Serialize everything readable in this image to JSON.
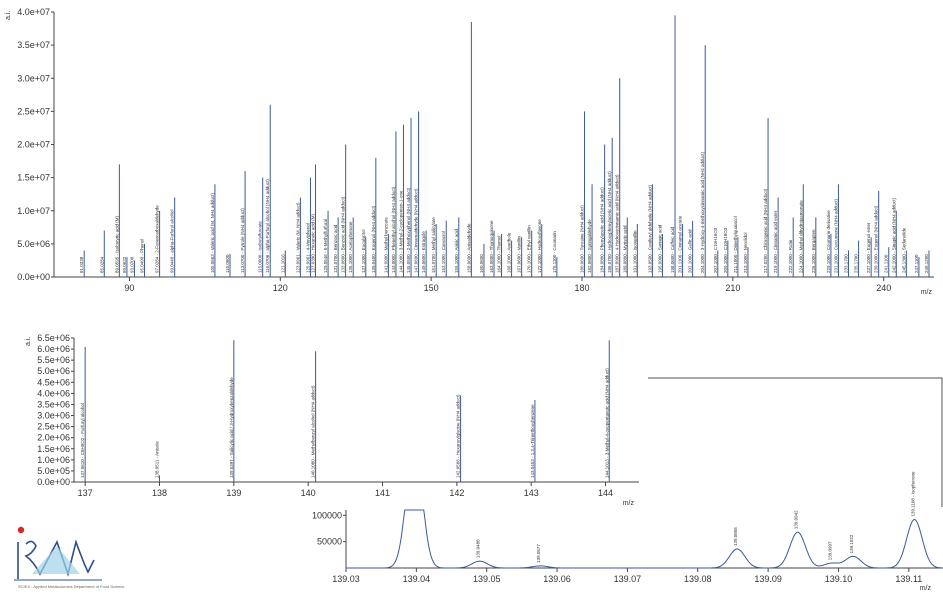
{
  "chart_data": [
    {
      "type": "bar",
      "ylabel": "a.i.",
      "xlabel": "m/z",
      "xlim": [
        75,
        250
      ],
      "ylim": [
        0,
        40000000
      ],
      "yticks": [
        "0.0e+00",
        "5.0e+06",
        "1.0e+07",
        "1.5e+07",
        "2.0e+07",
        "2.5e+07",
        "3.0e+07",
        "3.5e+07",
        "4.0e+07"
      ],
      "xticks": [
        "90",
        "120",
        "150",
        "180",
        "210",
        "240"
      ],
      "peaks": [
        {
          "x": 81.0,
          "y": 4000000,
          "label": "81.0338"
        },
        {
          "x": 85.0,
          "y": 7000000,
          "label": "85.0284"
        },
        {
          "x": 88.0,
          "y": 17000000,
          "label": "89.0595 - Isobutyric acid (M)"
        },
        {
          "x": 89.5,
          "y": 3000000,
          "label": "89.0632"
        },
        {
          "x": 91.0,
          "y": 2500000,
          "label": "93.0700"
        },
        {
          "x": 93.0,
          "y": 5000000,
          "label": "95.0490 - Phenol"
        },
        {
          "x": 96.0,
          "y": 10000000,
          "label": "97.0284 - 2-Furancarboxaldehyde"
        },
        {
          "x": 99.0,
          "y": 12000000,
          "label": "99.0440 - alpha-Furfuryl alcohol"
        },
        {
          "x": 107.0,
          "y": 14000000,
          "label": "105.0663 - Valeric acid (M, NH4 adduct)"
        },
        {
          "x": 110.0,
          "y": 3500000,
          "label": "110.0600"
        },
        {
          "x": 113.0,
          "y": 16000000,
          "label": "113.0700 - Pyrrole (NH4 adduct)"
        },
        {
          "x": 116.5,
          "y": 15000000,
          "label": "115.0600 - Isobutylfuroate"
        },
        {
          "x": 118.0,
          "y": 26000000,
          "label": "116.0706 - alpha-Furfuryl alcohol (NH4 adduct)"
        },
        {
          "x": 121.0,
          "y": 4000000,
          "label": "121.1016"
        },
        {
          "x": 124.0,
          "y": 12000000,
          "label": "123.0961 - Valeric (M, NH4 adduct)"
        },
        {
          "x": 126.0,
          "y": 15000000,
          "label": "125.0961 - 4-Vinylphenol"
        },
        {
          "x": 127.0,
          "y": 17000000,
          "label": "127.0390 - Hexanoic acid (M)"
        },
        {
          "x": 129.5,
          "y": 10000000,
          "label": "129.0546 - 5-Methylfurfural"
        },
        {
          "x": 131.5,
          "y": 9000000,
          "label": "131.0700 - Benzoic acid"
        },
        {
          "x": 133.0,
          "y": 20000000,
          "label": "133.0800 - Benzoic acid (NH4 adduct)"
        },
        {
          "x": 134.5,
          "y": 9000000,
          "label": "135.1000 - Acetophenone"
        },
        {
          "x": 137.0,
          "y": 6000000,
          "label": "137.1000 - Eucalyptol"
        },
        {
          "x": 139.0,
          "y": 18000000,
          "label": "139.0400 - Eugenol (NH4 adduct)"
        },
        {
          "x": 141.5,
          "y": 6500000,
          "label": "141.0900 - Methyl benzoate"
        },
        {
          "x": 143.0,
          "y": 22000000,
          "label": "143.0000 - Phenethyl alcohol (NH4 adduct)"
        },
        {
          "x": 144.5,
          "y": 23000000,
          "label": "144.1000 - 3-Methyl-2-cyclopenten-1-one"
        },
        {
          "x": 146.0,
          "y": 24000000,
          "label": "145.0500 - 2-Methoxyphenol (NH4 adduct)"
        },
        {
          "x": 147.5,
          "y": 25000000,
          "label": "147.0600 - Cinnamaldehyde (NH4 adduct)"
        },
        {
          "x": 149.0,
          "y": 7000000,
          "label": "149.0600 - Estragole"
        },
        {
          "x": 151.0,
          "y": 8000000,
          "label": "151.0700 - Methyl salicylate"
        },
        {
          "x": 153.0,
          "y": 8500000,
          "label": "153.1000 - Carvacrol"
        },
        {
          "x": 155.5,
          "y": 9000000,
          "label": "155.1000 - Anisic acid"
        },
        {
          "x": 158.0,
          "y": 38500000,
          "label": "158.0600 - Anisaldehyde"
        },
        {
          "x": 160.5,
          "y": 5000000,
          "label": "160.0600"
        },
        {
          "x": 162.5,
          "y": 7000000,
          "label": "163.0600 - Thymoquinone"
        },
        {
          "x": 164.0,
          "y": 6500000,
          "label": "164.1000 - Thymol"
        },
        {
          "x": 166.0,
          "y": 5500000,
          "label": "166.1000 - Anethole"
        },
        {
          "x": 168.0,
          "y": 6000000,
          "label": "167.0600 - Vanillin"
        },
        {
          "x": 170.0,
          "y": 7000000,
          "label": "170.1000 - Ethyl vanillin"
        },
        {
          "x": 172.0,
          "y": 8000000,
          "label": "172.1000 - Hydroxyflavone"
        },
        {
          "x": 175.0,
          "y": 3000000,
          "label": "175.1100 - Coumarin"
        },
        {
          "x": 180.5,
          "y": 25000000,
          "label": "180.0600 - Tyrosine (NH4 adduct)"
        },
        {
          "x": 182.0,
          "y": 14000000,
          "label": "182.0800 - Syringaldehyde"
        },
        {
          "x": 184.5,
          "y": 20000000,
          "label": "184.0800 - Phenylacetic acid (NH4 adduct)"
        },
        {
          "x": 186.0,
          "y": 21000000,
          "label": "186.0700 - Hydroxyphenylacetic acid (NH4 adduct)"
        },
        {
          "x": 187.5,
          "y": 30000000,
          "label": "187.0900 - 4-Hydroxycinnamic acid (NH4 adduct)"
        },
        {
          "x": 189.0,
          "y": 9000000,
          "label": "189.0800 - Myristic acid"
        },
        {
          "x": 191.0,
          "y": 8000000,
          "label": "191.1000 - Isovanillin"
        },
        {
          "x": 194.0,
          "y": 14000000,
          "label": "193.0500 - Coniferyl aldehyde (NH4 adduct)"
        },
        {
          "x": 196.0,
          "y": 6500000,
          "label": "195.0900 - Syringic acid"
        },
        {
          "x": 198.5,
          "y": 39500000,
          "label": "198.0600 - Caffeic acid"
        },
        {
          "x": 200.0,
          "y": 8000000,
          "label": "201.1100 - Cinnamyl acetate"
        },
        {
          "x": 202.0,
          "y": 8500000,
          "label": "202.1000 - Gallic acid"
        },
        {
          "x": 204.5,
          "y": 35000000,
          "label": "204.1000 - 3-Hydroxy-4-methoxycinnamic acid (NH4 adduct)"
        },
        {
          "x": 207.0,
          "y": 4000000,
          "label": "207.1000 - C10H16O3"
        },
        {
          "x": 209.0,
          "y": 5500000,
          "label": "209.1000 - C10H18O3"
        },
        {
          "x": 211.0,
          "y": 6000000,
          "label": "211.1000 - Dimethylguaiacol"
        },
        {
          "x": 213.0,
          "y": 4500000,
          "label": "213.1000 - Nerolidol"
        },
        {
          "x": 217.0,
          "y": 24000000,
          "label": "217.0200 - Chlorogenic acid (NH4 adduct)"
        },
        {
          "x": 219.0,
          "y": 12000000,
          "label": "219.1000 - Cinnamic acid ester"
        },
        {
          "x": 222.0,
          "y": 9000000,
          "label": "222.1000 - Rutin"
        },
        {
          "x": 224.0,
          "y": 14000000,
          "label": "224.1000 - Methyl dihydrojasmonate"
        },
        {
          "x": 226.5,
          "y": 9000000,
          "label": "226.1000 - Bergapten"
        },
        {
          "x": 229.5,
          "y": 6500000,
          "label": "229.1000 - Coumarin derivative"
        },
        {
          "x": 231.0,
          "y": 14000000,
          "label": "231.1000 - Curcumene (NH4 adduct)"
        },
        {
          "x": 233.0,
          "y": 4000000,
          "label": "233.1700"
        },
        {
          "x": 235.0,
          "y": 5500000,
          "label": "235.1700"
        },
        {
          "x": 237.5,
          "y": 6000000,
          "label": "237.1000 - Eugenol ester"
        },
        {
          "x": 239.0,
          "y": 13000000,
          "label": "239.1000 - Eugenol (NH4 adduct)"
        },
        {
          "x": 241.0,
          "y": 4500000,
          "label": "241.1100"
        },
        {
          "x": 242.5,
          "y": 10000000,
          "label": "242.1000 - Sinapic acid (NH4 adduct)"
        },
        {
          "x": 244.5,
          "y": 4000000,
          "label": "245.1300 - Sedanolide"
        },
        {
          "x": 247.0,
          "y": 3000000,
          "label": "247.1100"
        },
        {
          "x": 249.0,
          "y": 4000000,
          "label": "249.1200"
        }
      ]
    },
    {
      "type": "bar",
      "ylabel": "a.i.",
      "xlabel": "m/z",
      "xlim": [
        136.85,
        144.45
      ],
      "ylim": [
        0,
        6500000
      ],
      "yticks": [
        "0.0e+00",
        "5.0e+05",
        "1.0e+06",
        "1.5e+06",
        "2.0e+06",
        "2.5e+06",
        "3.0e+06",
        "3.5e+06",
        "4.0e+06",
        "4.5e+06",
        "5.0e+06",
        "5.5e+06",
        "6.0e+06",
        "6.5e+06"
      ],
      "xticks": [
        "137",
        "138",
        "139",
        "140",
        "141",
        "142",
        "143",
        "144"
      ],
      "peaks": [
        {
          "x": 137.0,
          "y": 6100000,
          "label": "137.0610 - C8H9O2 - Furfuryl alcohol"
        },
        {
          "x": 138.0,
          "y": 300000,
          "label": "138.0511 - Anisole"
        },
        {
          "x": 139.0,
          "y": 6400000,
          "label": "139.0397 - Salicylic acid / 3-Hydroxybenzaldehyde"
        },
        {
          "x": 140.1,
          "y": 5900000,
          "label": "140.1080 - Methylbenzyl alcohol (NH4 adduct)"
        },
        {
          "x": 142.05,
          "y": 3900000,
          "label": "142.0566 - Hexanoylglycine (NH4 adduct)"
        },
        {
          "x": 143.05,
          "y": 3700000,
          "label": "143.0453 - 1,2,4-Trimethoxybenzene"
        },
        {
          "x": 144.05,
          "y": 6400000,
          "label": "144.1013 - 3-Methyl-4-oxopentanoic acid (NH4 adduct)"
        }
      ]
    },
    {
      "type": "line",
      "xlabel": "m/z",
      "xlim": [
        139.03,
        139.115
      ],
      "ylim": [
        0,
        110000
      ],
      "yticks": [
        "50000",
        "100000"
      ],
      "xticks": [
        "139.03",
        "139.04",
        "139.05",
        "139.06",
        "139.07",
        "139.08",
        "139.09",
        "139.10",
        "139.11"
      ],
      "peaks": [
        {
          "x": 139.0397,
          "y": 240000,
          "label": ""
        },
        {
          "x": 139.049,
          "y": 13000,
          "label": "139.0488"
        },
        {
          "x": 139.0576,
          "y": 4000,
          "label": "139.0577"
        },
        {
          "x": 139.0856,
          "y": 36000,
          "label": "139.0856"
        },
        {
          "x": 139.0942,
          "y": 68000,
          "label": "139.0942"
        },
        {
          "x": 139.099,
          "y": 9000,
          "label": "139.0997"
        },
        {
          "x": 139.1021,
          "y": 22000,
          "label": "139.1022"
        },
        {
          "x": 139.1108,
          "y": 92000,
          "label": "139.1108 - Isophorone"
        }
      ]
    }
  ],
  "logo": {
    "name": "lab-logo",
    "caption": "SCIEX · Applied Metabolomics Department of Food Science"
  }
}
